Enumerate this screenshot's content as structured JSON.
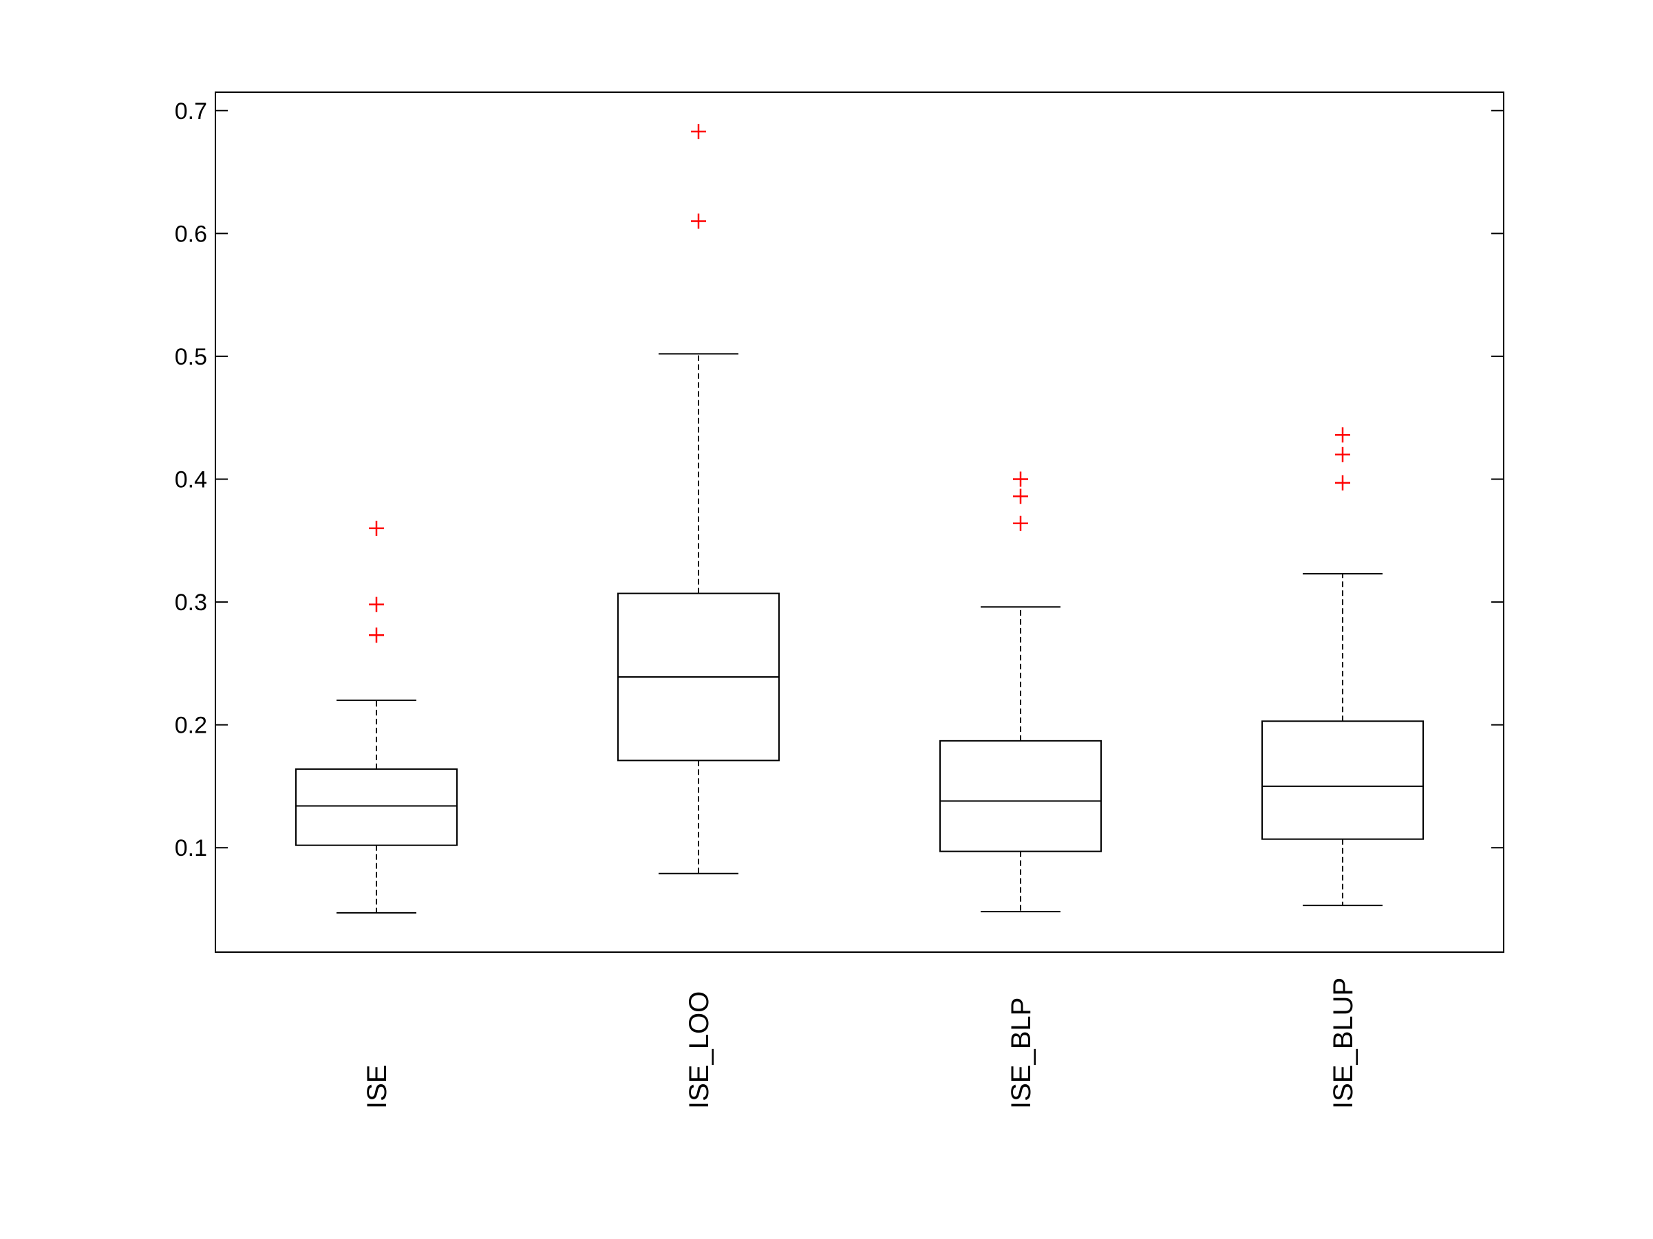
{
  "chart_data": {
    "type": "box",
    "title": "",
    "xlabel": "",
    "ylabel": "",
    "ylim": [
      0.015,
      0.715
    ],
    "yticks": [
      0.1,
      0.2,
      0.3,
      0.4,
      0.5,
      0.6,
      0.7
    ],
    "ytick_labels": [
      "0.1",
      "0.2",
      "0.3",
      "0.4",
      "0.5",
      "0.6",
      "0.7"
    ],
    "grid": false,
    "colors": {
      "box": "#000000",
      "outlier": "#ff0000"
    },
    "categories": [
      "ISE",
      "ISE_LOO",
      "ISE_BLP",
      "ISE_BLUP"
    ],
    "boxes": [
      {
        "category": "ISE",
        "whisker_low": 0.047,
        "q1": 0.102,
        "median": 0.134,
        "q3": 0.164,
        "whisker_high": 0.22,
        "outliers": [
          0.273,
          0.298,
          0.36
        ]
      },
      {
        "category": "ISE_LOO",
        "whisker_low": 0.079,
        "q1": 0.171,
        "median": 0.239,
        "q3": 0.307,
        "whisker_high": 0.502,
        "outliers": [
          0.61,
          0.683
        ]
      },
      {
        "category": "ISE_BLP",
        "whisker_low": 0.048,
        "q1": 0.097,
        "median": 0.138,
        "q3": 0.187,
        "whisker_high": 0.296,
        "outliers": [
          0.364,
          0.386,
          0.4
        ]
      },
      {
        "category": "ISE_BLUP",
        "whisker_low": 0.053,
        "q1": 0.107,
        "median": 0.15,
        "q3": 0.203,
        "whisker_high": 0.323,
        "outliers": [
          0.397,
          0.42,
          0.436
        ]
      }
    ]
  }
}
